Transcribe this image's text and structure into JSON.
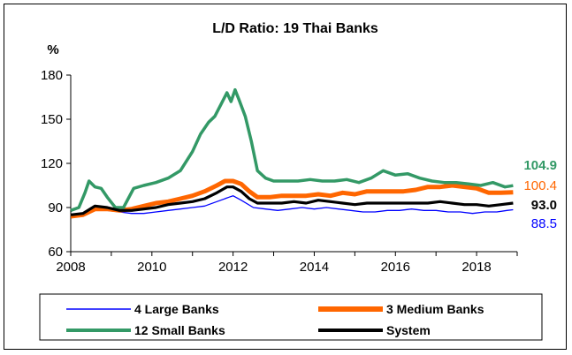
{
  "chart_data": {
    "type": "line",
    "title": "L/D Ratio: 19 Thai Banks",
    "ylabel": "%",
    "xlabel": "",
    "xlim": [
      2008,
      2019
    ],
    "ylim": [
      60,
      180
    ],
    "x_ticks": [
      2008,
      2010,
      2012,
      2014,
      2016,
      2018
    ],
    "y_ticks": [
      60,
      90,
      120,
      150,
      180
    ],
    "grid": false,
    "legend_position": "bottom",
    "colors": {
      "large": "#0000ff",
      "medium": "#ff6600",
      "small": "#339966",
      "system": "#000000"
    },
    "end_labels": {
      "small": "104.9",
      "medium": "100.4",
      "system": "93.0",
      "large": "88.5"
    },
    "series": [
      {
        "key": "large",
        "name": "4 Large Banks",
        "points": [
          [
            2008.0,
            85
          ],
          [
            2008.3,
            86
          ],
          [
            2008.6,
            88
          ],
          [
            2008.9,
            88
          ],
          [
            2009.2,
            87
          ],
          [
            2009.5,
            86
          ],
          [
            2009.8,
            86
          ],
          [
            2010.1,
            87
          ],
          [
            2010.4,
            88
          ],
          [
            2010.7,
            89
          ],
          [
            2011.0,
            90
          ],
          [
            2011.3,
            91
          ],
          [
            2011.6,
            94
          ],
          [
            2011.9,
            97
          ],
          [
            2012.0,
            98
          ],
          [
            2012.2,
            95
          ],
          [
            2012.5,
            90
          ],
          [
            2012.8,
            89
          ],
          [
            2013.1,
            88
          ],
          [
            2013.4,
            89
          ],
          [
            2013.7,
            90
          ],
          [
            2014.0,
            89
          ],
          [
            2014.3,
            90
          ],
          [
            2014.6,
            89
          ],
          [
            2014.9,
            88
          ],
          [
            2015.2,
            87
          ],
          [
            2015.5,
            87
          ],
          [
            2015.8,
            88
          ],
          [
            2016.1,
            88
          ],
          [
            2016.4,
            89
          ],
          [
            2016.7,
            88
          ],
          [
            2017.0,
            88
          ],
          [
            2017.3,
            87
          ],
          [
            2017.6,
            87
          ],
          [
            2017.9,
            86
          ],
          [
            2018.2,
            87
          ],
          [
            2018.5,
            87
          ],
          [
            2018.75,
            88
          ],
          [
            2018.9,
            88.5
          ]
        ]
      },
      {
        "key": "medium",
        "name": "3 Medium Banks",
        "points": [
          [
            2008.0,
            84
          ],
          [
            2008.3,
            85
          ],
          [
            2008.6,
            89
          ],
          [
            2008.9,
            89
          ],
          [
            2009.2,
            88
          ],
          [
            2009.5,
            89
          ],
          [
            2009.8,
            91
          ],
          [
            2010.1,
            93
          ],
          [
            2010.4,
            94
          ],
          [
            2010.7,
            96
          ],
          [
            2011.0,
            98
          ],
          [
            2011.3,
            101
          ],
          [
            2011.6,
            105
          ],
          [
            2011.8,
            108
          ],
          [
            2012.0,
            108
          ],
          [
            2012.2,
            106
          ],
          [
            2012.4,
            101
          ],
          [
            2012.6,
            97
          ],
          [
            2012.9,
            97
          ],
          [
            2013.2,
            98
          ],
          [
            2013.5,
            98
          ],
          [
            2013.8,
            98
          ],
          [
            2014.1,
            99
          ],
          [
            2014.4,
            98
          ],
          [
            2014.7,
            100
          ],
          [
            2015.0,
            99
          ],
          [
            2015.3,
            101
          ],
          [
            2015.6,
            101
          ],
          [
            2015.9,
            101
          ],
          [
            2016.2,
            101
          ],
          [
            2016.5,
            102
          ],
          [
            2016.8,
            104
          ],
          [
            2017.1,
            104
          ],
          [
            2017.4,
            105
          ],
          [
            2017.7,
            104
          ],
          [
            2018.0,
            103
          ],
          [
            2018.3,
            100
          ],
          [
            2018.6,
            100
          ],
          [
            2018.9,
            100.4
          ]
        ]
      },
      {
        "key": "small",
        "name": "12 Small Banks",
        "points": [
          [
            2008.0,
            88
          ],
          [
            2008.2,
            90
          ],
          [
            2008.35,
            100
          ],
          [
            2008.45,
            108
          ],
          [
            2008.6,
            104
          ],
          [
            2008.75,
            103
          ],
          [
            2008.9,
            97
          ],
          [
            2009.1,
            90
          ],
          [
            2009.3,
            90
          ],
          [
            2009.55,
            103
          ],
          [
            2009.8,
            105
          ],
          [
            2010.1,
            107
          ],
          [
            2010.4,
            110
          ],
          [
            2010.7,
            115
          ],
          [
            2011.0,
            128
          ],
          [
            2011.2,
            140
          ],
          [
            2011.4,
            148
          ],
          [
            2011.55,
            152
          ],
          [
            2011.7,
            160
          ],
          [
            2011.85,
            168
          ],
          [
            2011.95,
            162
          ],
          [
            2012.05,
            170
          ],
          [
            2012.15,
            163
          ],
          [
            2012.3,
            152
          ],
          [
            2012.45,
            135
          ],
          [
            2012.6,
            115
          ],
          [
            2012.8,
            110
          ],
          [
            2013.0,
            108
          ],
          [
            2013.3,
            108
          ],
          [
            2013.6,
            108
          ],
          [
            2013.9,
            109
          ],
          [
            2014.2,
            108
          ],
          [
            2014.5,
            108
          ],
          [
            2014.8,
            109
          ],
          [
            2015.1,
            107
          ],
          [
            2015.4,
            110
          ],
          [
            2015.7,
            115
          ],
          [
            2016.0,
            112
          ],
          [
            2016.3,
            113
          ],
          [
            2016.6,
            110
          ],
          [
            2016.9,
            108
          ],
          [
            2017.2,
            107
          ],
          [
            2017.5,
            107
          ],
          [
            2017.8,
            106
          ],
          [
            2018.1,
            105
          ],
          [
            2018.4,
            107
          ],
          [
            2018.7,
            104
          ],
          [
            2018.9,
            104.9
          ]
        ]
      },
      {
        "key": "system",
        "name": "System",
        "points": [
          [
            2008.0,
            85
          ],
          [
            2008.3,
            86
          ],
          [
            2008.6,
            91
          ],
          [
            2008.9,
            90
          ],
          [
            2009.2,
            88
          ],
          [
            2009.5,
            88
          ],
          [
            2009.8,
            89
          ],
          [
            2010.1,
            90
          ],
          [
            2010.4,
            92
          ],
          [
            2010.7,
            93
          ],
          [
            2011.0,
            94
          ],
          [
            2011.3,
            96
          ],
          [
            2011.6,
            100
          ],
          [
            2011.85,
            104
          ],
          [
            2012.0,
            104
          ],
          [
            2012.2,
            101
          ],
          [
            2012.4,
            96
          ],
          [
            2012.6,
            93
          ],
          [
            2012.9,
            93
          ],
          [
            2013.2,
            93
          ],
          [
            2013.5,
            94
          ],
          [
            2013.8,
            93
          ],
          [
            2014.1,
            95
          ],
          [
            2014.4,
            94
          ],
          [
            2014.7,
            93
          ],
          [
            2015.0,
            92
          ],
          [
            2015.3,
            93
          ],
          [
            2015.6,
            93
          ],
          [
            2015.9,
            93
          ],
          [
            2016.2,
            93
          ],
          [
            2016.5,
            93
          ],
          [
            2016.8,
            93
          ],
          [
            2017.1,
            94
          ],
          [
            2017.4,
            93
          ],
          [
            2017.7,
            92
          ],
          [
            2018.0,
            92
          ],
          [
            2018.3,
            91
          ],
          [
            2018.6,
            92
          ],
          [
            2018.9,
            93.0
          ]
        ]
      }
    ]
  }
}
